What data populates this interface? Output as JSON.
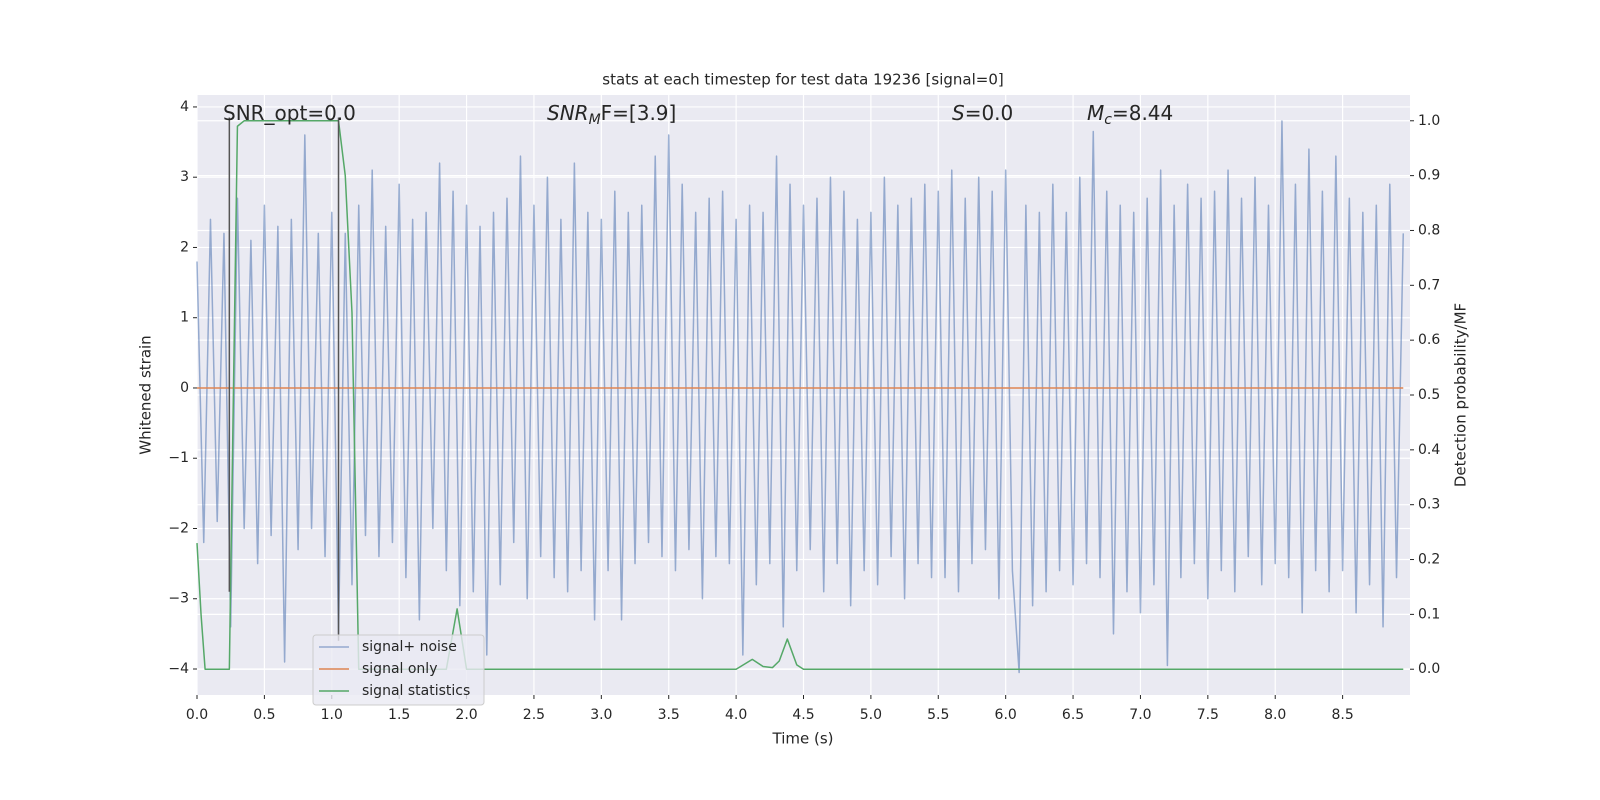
{
  "chart_data": {
    "type": "line",
    "title": "stats at each timestep for test data 19236 [signal=0]",
    "xlabel": "Time (s)",
    "ylabel": "Whitened strain",
    "y2label": "Detection probability/MF",
    "xlim": [
      0,
      9.0
    ],
    "ylim": [
      -4.37,
      4.17
    ],
    "y2lim": [
      -0.047,
      1.047
    ],
    "xticks": [
      {
        "value": 0,
        "label": "0.0"
      },
      {
        "value": 0.5,
        "label": "0.5"
      },
      {
        "value": 1,
        "label": "1.0"
      },
      {
        "value": 1.5,
        "label": "1.5"
      },
      {
        "value": 2,
        "label": "2.0"
      },
      {
        "value": 2.5,
        "label": "2.5"
      },
      {
        "value": 3,
        "label": "3.0"
      },
      {
        "value": 3.5,
        "label": "3.5"
      },
      {
        "value": 4,
        "label": "4.0"
      },
      {
        "value": 4.5,
        "label": "4.5"
      },
      {
        "value": 5,
        "label": "5.0"
      },
      {
        "value": 5.5,
        "label": "5.5"
      },
      {
        "value": 6,
        "label": "6.0"
      },
      {
        "value": 6.5,
        "label": "6.5"
      },
      {
        "value": 7,
        "label": "7.0"
      },
      {
        "value": 7.5,
        "label": "7.5"
      },
      {
        "value": 8,
        "label": "8.0"
      },
      {
        "value": 8.5,
        "label": "8.5"
      }
    ],
    "yticks": [
      {
        "value": -4,
        "label": "−4"
      },
      {
        "value": -3,
        "label": "−3"
      },
      {
        "value": -2,
        "label": "−2"
      },
      {
        "value": -1,
        "label": "−1"
      },
      0,
      1,
      2,
      3,
      4
    ],
    "y2ticks": [
      {
        "value": 0,
        "label": "0.0"
      },
      {
        "value": 0.1,
        "label": "0.1"
      },
      {
        "value": 0.2,
        "label": "0.2"
      },
      {
        "value": 0.3,
        "label": "0.3"
      },
      {
        "value": 0.4,
        "label": "0.4"
      },
      {
        "value": 0.5,
        "label": "0.5"
      },
      {
        "value": 0.6,
        "label": "0.6"
      },
      {
        "value": 0.7,
        "label": "0.7"
      },
      {
        "value": 0.8,
        "label": "0.8"
      },
      {
        "value": 0.9,
        "label": "0.9"
      },
      {
        "value": 1,
        "label": "1.0"
      }
    ],
    "grid": true,
    "legend": "lower left",
    "annotations": [
      {
        "parts": [
          "SNR_opt=0.0"
        ]
      },
      {
        "parts": [
          "SNR",
          "M",
          "F=[3.9]"
        ]
      },
      {
        "parts": [
          "S",
          "=0.0"
        ]
      },
      {
        "parts": [
          "M",
          "c",
          "=8.44"
        ]
      }
    ],
    "vlines": [
      {
        "x": 0.24,
        "y": [
          -2.9,
          3.85
        ],
        "color": "#555555"
      },
      {
        "x": 1.05,
        "y": [
          -3.6,
          3.85
        ],
        "color": "#555555"
      }
    ],
    "series": [
      {
        "name": "signal+ noise",
        "color": "#4c72b0",
        "opacity": 0.55,
        "x": [
          0,
          0.05,
          0.1,
          0.15,
          0.2,
          0.25,
          0.3,
          0.35,
          0.4,
          0.45,
          0.5,
          0.55,
          0.6,
          0.65,
          0.7,
          0.75,
          0.8,
          0.85,
          0.9,
          0.95,
          1,
          1.05,
          1.1,
          1.15,
          1.2,
          1.25,
          1.3,
          1.35,
          1.4,
          1.45,
          1.5,
          1.55,
          1.6,
          1.65,
          1.7,
          1.75,
          1.8,
          1.85,
          1.9,
          1.95,
          2,
          2.05,
          2.1,
          2.15,
          2.2,
          2.25,
          2.3,
          2.35,
          2.4,
          2.45,
          2.5,
          2.55,
          2.6,
          2.65,
          2.7,
          2.75,
          2.8,
          2.85,
          2.9,
          2.95,
          3,
          3.05,
          3.1,
          3.15,
          3.2,
          3.25,
          3.3,
          3.35,
          3.4,
          3.45,
          3.5,
          3.55,
          3.6,
          3.65,
          3.7,
          3.75,
          3.8,
          3.85,
          3.9,
          3.95,
          4,
          4.05,
          4.1,
          4.15,
          4.2,
          4.25,
          4.3,
          4.35,
          4.4,
          4.45,
          4.5,
          4.55,
          4.6,
          4.65,
          4.7,
          4.75,
          4.8,
          4.85,
          4.9,
          4.95,
          5,
          5.05,
          5.1,
          5.15,
          5.2,
          5.25,
          5.3,
          5.35,
          5.4,
          5.45,
          5.5,
          5.55,
          5.6,
          5.65,
          5.7,
          5.75,
          5.8,
          5.85,
          5.9,
          5.95,
          6,
          6.05,
          6.1,
          6.15,
          6.2,
          6.25,
          6.3,
          6.35,
          6.4,
          6.45,
          6.5,
          6.55,
          6.6,
          6.65,
          6.7,
          6.75,
          6.8,
          6.85,
          6.9,
          6.95,
          7,
          7.05,
          7.1,
          7.15,
          7.2,
          7.25,
          7.3,
          7.35,
          7.4,
          7.45,
          7.5,
          7.55,
          7.6,
          7.65,
          7.7,
          7.75,
          7.8,
          7.85,
          7.9,
          7.95,
          8,
          8.05,
          8.1,
          8.15,
          8.2,
          8.25,
          8.3,
          8.35,
          8.4,
          8.45,
          8.5,
          8.55,
          8.6,
          8.65,
          8.7,
          8.75,
          8.8,
          8.85,
          8.9,
          8.95
        ],
        "values": [
          1.8,
          -2.2,
          2.4,
          -1.9,
          2.2,
          -3.4,
          2.7,
          -2.0,
          2.1,
          -2.5,
          2.6,
          -2.1,
          2.3,
          -3.9,
          2.4,
          -2.3,
          3.6,
          -2.0,
          2.2,
          -2.4,
          2.5,
          -3.5,
          2.2,
          -2.8,
          2.6,
          -2.1,
          3.1,
          -2.4,
          2.3,
          -2.2,
          2.9,
          -2.7,
          2.4,
          -3.3,
          2.5,
          -2.0,
          3.2,
          -2.6,
          2.8,
          -3.1,
          2.6,
          -2.9,
          2.3,
          -3.8,
          2.5,
          -2.8,
          2.7,
          -2.2,
          3.3,
          -3.0,
          2.6,
          -2.4,
          3.0,
          -2.7,
          2.4,
          -2.9,
          3.2,
          -2.6,
          2.5,
          -3.3,
          2.4,
          -2.6,
          2.8,
          -3.3,
          2.5,
          -2.5,
          2.6,
          -2.2,
          3.3,
          -2.4,
          3.6,
          -2.6,
          2.9,
          -2.3,
          2.5,
          -3.0,
          2.7,
          -2.4,
          2.8,
          -2.5,
          2.4,
          -3.8,
          2.6,
          -2.8,
          2.5,
          -2.5,
          3.3,
          -3.4,
          2.9,
          -2.6,
          2.6,
          -2.3,
          2.7,
          -2.9,
          3.0,
          -2.5,
          2.8,
          -3.1,
          2.4,
          -2.6,
          2.5,
          -2.8,
          3.0,
          -2.4,
          2.6,
          -3.0,
          2.7,
          -2.5,
          2.9,
          -2.7,
          2.8,
          -2.7,
          3.1,
          -2.9,
          2.7,
          -2.5,
          3.0,
          -2.3,
          2.8,
          -3.0,
          3.1,
          -2.6,
          -4.05,
          2.6,
          -3.1,
          2.5,
          -2.9,
          2.9,
          -2.6,
          2.5,
          -2.8,
          3.0,
          -2.5,
          3.65,
          -2.7,
          2.8,
          -3.5,
          2.6,
          -2.9,
          2.5,
          -3.2,
          2.7,
          -2.8,
          3.1,
          -3.95,
          2.6,
          -2.7,
          2.9,
          -2.5,
          2.7,
          -3.0,
          2.8,
          -2.6,
          3.1,
          -2.9,
          2.7,
          -2.4,
          3.0,
          -2.8,
          2.6,
          -2.5,
          3.8,
          -2.7,
          2.9,
          -3.2,
          3.4,
          -2.6,
          2.8,
          -2.9,
          3.3,
          -2.6,
          2.7,
          -3.2,
          2.5,
          -2.8,
          2.6,
          -3.4,
          2.9,
          -2.7,
          2.2
        ]
      },
      {
        "name": "signal only",
        "color": "#dd8452",
        "opacity": 1,
        "x": [
          0,
          8.95
        ],
        "values": [
          0,
          0
        ]
      },
      {
        "name": "signal statistics",
        "color": "#55a868",
        "opacity": 1,
        "axis": "y2",
        "x": [
          0,
          0.03,
          0.06,
          0.24,
          0.27,
          0.3,
          0.35,
          1.05,
          1.1,
          1.15,
          1.2,
          1.85,
          1.93,
          2.0,
          4.0,
          4.12,
          4.2,
          4.27,
          4.32,
          4.38,
          4.45,
          4.5,
          8.95
        ],
        "values": [
          0.23,
          0.1,
          0.0,
          0.0,
          0.5,
          0.99,
          1.0,
          1.0,
          0.9,
          0.65,
          0.0,
          0.0,
          0.11,
          0.0,
          0.0,
          0.018,
          0.005,
          0.003,
          0.015,
          0.055,
          0.008,
          0.0,
          0.0
        ]
      }
    ]
  }
}
